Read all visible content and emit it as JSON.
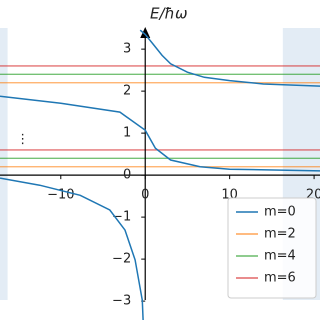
{
  "chart_data": {
    "type": "line",
    "y_label": "E/ħω",
    "annotation": "⋮",
    "annotation_x": -14.5,
    "annotation_y": 0.85,
    "xlim": [
      -17.2,
      20.7
    ],
    "ylim": [
      -3.45,
      4.17
    ],
    "xticks": [
      {
        "value": -10,
        "label": "−10"
      },
      0,
      10,
      20
    ],
    "yticks": [
      {
        "value": -3,
        "label": "−3"
      },
      {
        "value": -2,
        "label": "−2"
      },
      {
        "value": -1,
        "label": "−1"
      },
      0,
      1,
      2,
      3
    ],
    "shaded_regions": [
      [
        -17.2,
        -16.3
      ],
      [
        16.3,
        20.7
      ]
    ],
    "shade_color": "#dce7f3",
    "legend_position": "lower right",
    "series": [
      {
        "name": "m=0",
        "color": "#1f77b4",
        "segments": [
          {
            "x": [
              -17.2,
              -12.5,
              -7.7,
              -4.2,
              -2.4,
              -1.2,
              -0.35,
              -0.25
            ],
            "values": [
              -0.07,
              -0.24,
              -0.48,
              -0.83,
              -1.31,
              -2.02,
              -2.98,
              -3.45
            ]
          },
          {
            "x": [
              -17.2,
              -10,
              -3,
              0,
              1.2,
              3,
              6.5,
              10,
              20.7
            ],
            "values": [
              1.88,
              1.71,
              1.5,
              1.07,
              0.64,
              0.36,
              0.2,
              0.14,
              0.1
            ]
          },
          {
            "x": [
              -0.6,
              0,
              1,
              2,
              3,
              5,
              7,
              10,
              14,
              20.7
            ],
            "values": [
              3.45,
              3.35,
              3.1,
              2.85,
              2.65,
              2.45,
              2.33,
              2.25,
              2.17,
              2.12
            ]
          }
        ]
      },
      {
        "name": "m=2",
        "color": "#ff7f0e",
        "levels": [
          0.2,
          2.2
        ]
      },
      {
        "name": "m=4",
        "color": "#2ca02c",
        "levels": [
          0.4,
          2.4
        ]
      },
      {
        "name": "m=6",
        "color": "#d62728",
        "levels": [
          0.6,
          2.6
        ]
      }
    ]
  }
}
